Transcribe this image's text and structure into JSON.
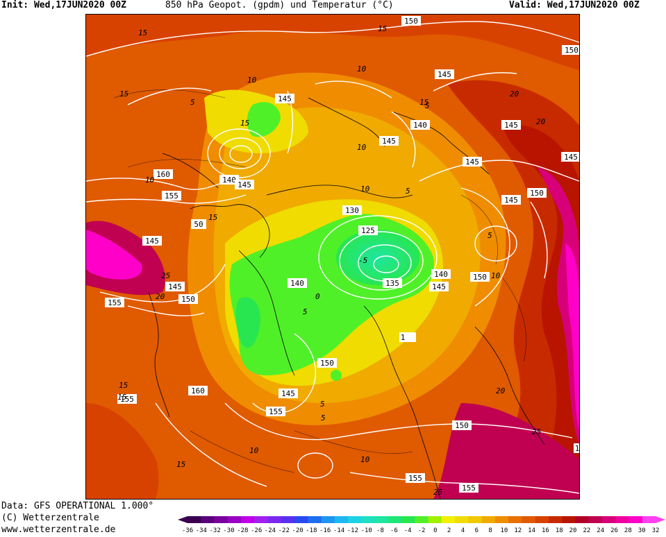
{
  "header": {
    "init": "Init: Wed,17JUN2020 00Z",
    "title": "850 hPa Geopot. (gpdm) und Temperatur (°C)",
    "valid": "Valid: Wed,17JUN2020 00Z"
  },
  "footer": {
    "data_source": "Data: GFS OPERATIONAL 1.000°",
    "copyright": "(C) Wetterzentrale",
    "website": "www.wetterzentrale.de"
  },
  "colorbar": {
    "ticks": [
      "-36",
      "-34",
      "-32",
      "-30",
      "-28",
      "-26",
      "-24",
      "-22",
      "-20",
      "-18",
      "-16",
      "-14",
      "-12",
      "-10",
      "-8",
      "-6",
      "-4",
      "-2",
      "0",
      "2",
      "4",
      "6",
      "8",
      "10",
      "12",
      "14",
      "16",
      "18",
      "20",
      "22",
      "24",
      "26",
      "28",
      "30",
      "32"
    ],
    "colors": [
      "#3a0050",
      "#5a007a",
      "#7a009e",
      "#9a00c4",
      "#c000e8",
      "#a020f0",
      "#7a28f0",
      "#5a30f0",
      "#2848f0",
      "#1e6ef0",
      "#1e96f0",
      "#1eb8f0",
      "#1ed2e6",
      "#1ee0c0",
      "#1ee6a0",
      "#1ee678",
      "#28e650",
      "#50f028",
      "#a0f000",
      "#f0f000",
      "#f0dc00",
      "#f0c800",
      "#f0aa00",
      "#f08c00",
      "#e87000",
      "#e05a00",
      "#d84200",
      "#c82a00",
      "#b81400",
      "#b00028",
      "#c00050",
      "#d80078",
      "#f000a0",
      "#ff00c8",
      "#ff40f0"
    ]
  },
  "map": {
    "geopotential_labels": [
      "150",
      "150",
      "145",
      "145",
      "140",
      "145",
      "145",
      "145",
      "145",
      "150",
      "145",
      "160",
      "140",
      "145",
      "155",
      "50",
      "130",
      "125",
      "145",
      "140",
      "135",
      "145",
      "150",
      "145",
      "140",
      "150",
      "155",
      "150",
      "1",
      "150",
      "155",
      "160",
      "145",
      "155",
      "150",
      "155",
      "155",
      "1"
    ],
    "temperature_labels": [
      "15",
      "15",
      "15",
      "10",
      "10",
      "10",
      "5",
      "5",
      "20",
      "20",
      "25",
      "20",
      "15",
      "10",
      "5",
      "5",
      "10",
      "15",
      "5",
      "15",
      "15",
      "10",
      "25",
      "25",
      "20",
      "15",
      "10",
      "5",
      "-5",
      "0",
      "15",
      "10",
      "5"
    ]
  }
}
